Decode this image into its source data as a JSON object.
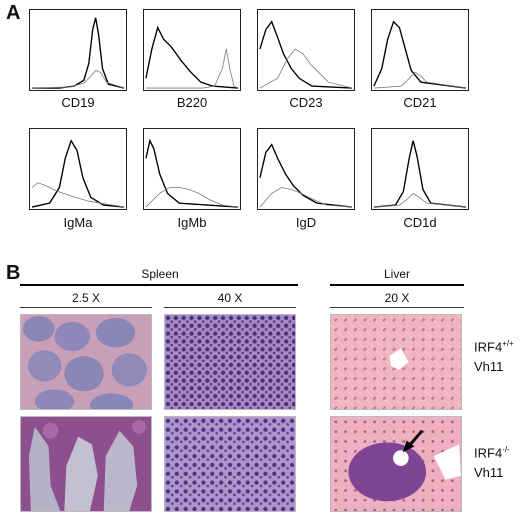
{
  "panel_a": {
    "letter": "A",
    "histograms": [
      {
        "marker": "CD19"
      },
      {
        "marker": "B220"
      },
      {
        "marker": "CD23"
      },
      {
        "marker": "CD21"
      },
      {
        "marker": "IgMa"
      },
      {
        "marker": "IgMb"
      },
      {
        "marker": "IgD"
      },
      {
        "marker": "CD1d"
      }
    ]
  },
  "panel_b": {
    "letter": "B",
    "spleen_label": "Spleen",
    "liver_label": "Liver",
    "mag_spleen_low": "2.5 X",
    "mag_spleen_high": "40 X",
    "mag_liver": "20 X",
    "row1_genotype": {
      "gene": "IRF4",
      "sup": "+/+",
      "line2": "Vh11"
    },
    "row2_genotype": {
      "gene": "IRF4",
      "sup": "-/-",
      "line2": "Vh11"
    }
  }
}
